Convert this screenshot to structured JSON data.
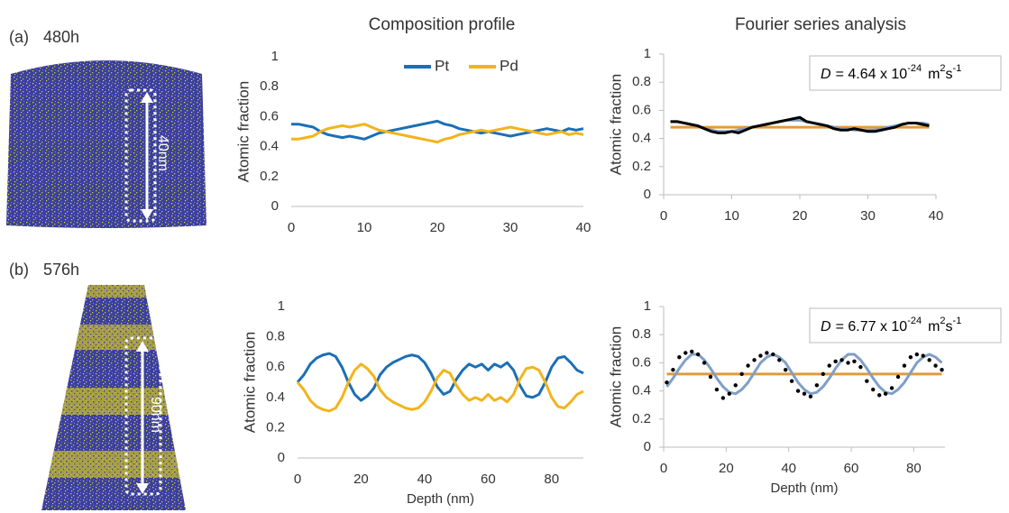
{
  "headers": {
    "composition": "Composition profile",
    "fourier": "Fourier series analysis"
  },
  "panels": [
    {
      "label": "(a)",
      "time": "480h",
      "scale": "40nm"
    },
    {
      "label": "(b)",
      "time": "576h",
      "scale": "90nm"
    }
  ],
  "chart_data": [
    {
      "type": "line",
      "ylabel": "Atomic fraction",
      "xlim": [
        0,
        40
      ],
      "ylim": [
        0,
        1
      ],
      "xticks": [
        0,
        10,
        20,
        30,
        40
      ],
      "yticks": [
        0,
        0.2,
        0.4,
        0.6,
        0.8,
        1
      ],
      "legend": "top",
      "x": [
        0,
        1,
        2,
        3,
        4,
        5,
        6,
        7,
        8,
        9,
        10,
        11,
        12,
        13,
        14,
        15,
        16,
        17,
        18,
        19,
        20,
        21,
        22,
        23,
        24,
        25,
        26,
        27,
        28,
        29,
        30,
        31,
        32,
        33,
        34,
        35,
        36,
        37,
        38,
        39,
        40
      ],
      "series": [
        {
          "name": "Pt",
          "color": "#1b6fb5",
          "values": [
            0.55,
            0.55,
            0.54,
            0.53,
            0.5,
            0.48,
            0.47,
            0.46,
            0.47,
            0.46,
            0.45,
            0.47,
            0.49,
            0.5,
            0.51,
            0.52,
            0.53,
            0.54,
            0.55,
            0.56,
            0.57,
            0.55,
            0.54,
            0.52,
            0.51,
            0.5,
            0.49,
            0.5,
            0.49,
            0.48,
            0.47,
            0.48,
            0.49,
            0.5,
            0.51,
            0.52,
            0.51,
            0.5,
            0.52,
            0.51,
            0.52
          ]
        },
        {
          "name": "Pd",
          "color": "#f2b41c",
          "values": [
            0.45,
            0.45,
            0.46,
            0.47,
            0.5,
            0.52,
            0.53,
            0.54,
            0.53,
            0.54,
            0.55,
            0.53,
            0.51,
            0.5,
            0.49,
            0.48,
            0.47,
            0.46,
            0.45,
            0.44,
            0.43,
            0.45,
            0.46,
            0.48,
            0.49,
            0.5,
            0.51,
            0.5,
            0.51,
            0.52,
            0.53,
            0.52,
            0.51,
            0.5,
            0.49,
            0.48,
            0.49,
            0.5,
            0.48,
            0.49,
            0.48
          ]
        }
      ]
    },
    {
      "type": "line",
      "ylabel": "Atomic fraction",
      "xlim": [
        0,
        40
      ],
      "ylim": [
        0,
        1
      ],
      "xticks": [
        0,
        10,
        20,
        30,
        40
      ],
      "yticks": [
        0,
        0.2,
        0.4,
        0.6,
        0.8,
        1
      ],
      "tick_marks": true,
      "y_axis_line": true,
      "annotation": {
        "symbol": "D",
        "equals": "= 4.64 x 10",
        "exponent": "-24",
        "unit": "m",
        "unit_power": "2",
        "unit2": "s",
        "unit2_power": "-1"
      },
      "x": [
        1,
        2,
        3,
        4,
        5,
        6,
        7,
        8,
        9,
        10,
        11,
        12,
        13,
        14,
        15,
        16,
        17,
        18,
        19,
        20,
        21,
        22,
        23,
        24,
        25,
        26,
        27,
        28,
        29,
        30,
        31,
        32,
        33,
        34,
        35,
        36,
        37,
        38,
        39
      ],
      "series": [
        {
          "color": "#e39a3b",
          "x": [
            1,
            39
          ],
          "values": [
            0.48,
            0.48
          ]
        },
        {
          "color": "#7f9fc8",
          "values": [
            0.52,
            0.52,
            0.51,
            0.5,
            0.49,
            0.47,
            0.46,
            0.45,
            0.45,
            0.45,
            0.46,
            0.47,
            0.48,
            0.49,
            0.5,
            0.51,
            0.52,
            0.53,
            0.53,
            0.53,
            0.52,
            0.51,
            0.5,
            0.49,
            0.48,
            0.47,
            0.47,
            0.46,
            0.46,
            0.46,
            0.46,
            0.47,
            0.48,
            0.49,
            0.5,
            0.51,
            0.51,
            0.51,
            0.5
          ]
        },
        {
          "color": "#000000",
          "width": 3,
          "values": [
            0.52,
            0.52,
            0.51,
            0.5,
            0.49,
            0.47,
            0.45,
            0.44,
            0.44,
            0.45,
            0.44,
            0.46,
            0.48,
            0.49,
            0.5,
            0.51,
            0.52,
            0.53,
            0.54,
            0.55,
            0.52,
            0.51,
            0.5,
            0.49,
            0.47,
            0.46,
            0.46,
            0.47,
            0.46,
            0.45,
            0.45,
            0.46,
            0.47,
            0.48,
            0.5,
            0.51,
            0.51,
            0.5,
            0.49
          ]
        }
      ]
    },
    {
      "type": "line",
      "ylabel": "Atomic fraction",
      "xlabel": "Depth (nm)",
      "xlim": [
        0,
        90
      ],
      "ylim": [
        0,
        1
      ],
      "xticks": [
        0,
        20,
        40,
        60,
        80
      ],
      "yticks": [
        0,
        0.2,
        0.4,
        0.6,
        0.8,
        1
      ],
      "x": [
        0,
        2,
        4,
        6,
        8,
        10,
        12,
        14,
        16,
        18,
        20,
        22,
        24,
        26,
        28,
        30,
        32,
        34,
        36,
        38,
        40,
        42,
        44,
        46,
        48,
        50,
        52,
        54,
        56,
        58,
        60,
        62,
        64,
        66,
        68,
        70,
        72,
        74,
        76,
        78,
        80,
        82,
        84,
        86,
        88,
        90
      ],
      "series": [
        {
          "color": "#1b6fb5",
          "values": [
            0.5,
            0.55,
            0.62,
            0.66,
            0.68,
            0.69,
            0.67,
            0.6,
            0.5,
            0.42,
            0.38,
            0.41,
            0.46,
            0.55,
            0.6,
            0.63,
            0.65,
            0.67,
            0.68,
            0.67,
            0.63,
            0.56,
            0.47,
            0.42,
            0.44,
            0.52,
            0.58,
            0.62,
            0.6,
            0.62,
            0.58,
            0.62,
            0.6,
            0.63,
            0.58,
            0.48,
            0.41,
            0.4,
            0.42,
            0.5,
            0.6,
            0.66,
            0.67,
            0.63,
            0.58,
            0.56
          ]
        },
        {
          "color": "#f2b41c",
          "values": [
            0.5,
            0.45,
            0.38,
            0.34,
            0.32,
            0.31,
            0.33,
            0.4,
            0.5,
            0.58,
            0.62,
            0.59,
            0.54,
            0.45,
            0.4,
            0.37,
            0.35,
            0.33,
            0.32,
            0.33,
            0.37,
            0.44,
            0.53,
            0.58,
            0.56,
            0.48,
            0.42,
            0.38,
            0.4,
            0.38,
            0.42,
            0.38,
            0.4,
            0.37,
            0.42,
            0.52,
            0.59,
            0.6,
            0.58,
            0.5,
            0.4,
            0.34,
            0.33,
            0.37,
            0.42,
            0.44
          ]
        }
      ]
    },
    {
      "type": "line",
      "ylabel": "Atomic fraction",
      "xlabel": "Depth (nm)",
      "xlim": [
        0,
        90
      ],
      "ylim": [
        0,
        1
      ],
      "xticks": [
        0,
        20,
        40,
        60,
        80
      ],
      "yticks": [
        0,
        0.2,
        0.4,
        0.6,
        0.8,
        1
      ],
      "tick_marks": true,
      "y_axis_line": true,
      "annotation": {
        "symbol": "D",
        "equals": "= 6.77 x 10",
        "exponent": "-24",
        "unit": "m",
        "unit_power": "2",
        "unit2": "s",
        "unit2_power": "-1"
      },
      "x": [
        1,
        3,
        5,
        7,
        9,
        11,
        13,
        15,
        17,
        19,
        21,
        23,
        25,
        27,
        29,
        31,
        33,
        35,
        37,
        39,
        41,
        43,
        45,
        47,
        49,
        51,
        53,
        55,
        57,
        59,
        61,
        63,
        65,
        67,
        69,
        71,
        73,
        75,
        77,
        79,
        81,
        83,
        85,
        87,
        89
      ],
      "series": [
        {
          "color": "#e39a3b",
          "x": [
            1,
            89
          ],
          "values": [
            0.52,
            0.52
          ]
        },
        {
          "color": "#7f9fc8",
          "values": [
            0.43,
            0.49,
            0.56,
            0.62,
            0.66,
            0.66,
            0.62,
            0.56,
            0.49,
            0.43,
            0.39,
            0.38,
            0.41,
            0.46,
            0.53,
            0.6,
            0.64,
            0.66,
            0.64,
            0.6,
            0.53,
            0.46,
            0.41,
            0.38,
            0.39,
            0.43,
            0.49,
            0.56,
            0.62,
            0.66,
            0.66,
            0.62,
            0.56,
            0.49,
            0.43,
            0.39,
            0.38,
            0.41,
            0.46,
            0.53,
            0.6,
            0.64,
            0.66,
            0.64,
            0.6
          ]
        },
        {
          "color": "#000000",
          "style": "dots",
          "values": [
            0.46,
            0.55,
            0.64,
            0.67,
            0.68,
            0.66,
            0.6,
            0.5,
            0.41,
            0.35,
            0.38,
            0.44,
            0.52,
            0.58,
            0.62,
            0.65,
            0.67,
            0.66,
            0.62,
            0.55,
            0.47,
            0.4,
            0.38,
            0.36,
            0.44,
            0.52,
            0.58,
            0.61,
            0.62,
            0.6,
            0.61,
            0.57,
            0.47,
            0.41,
            0.37,
            0.38,
            0.42,
            0.5,
            0.58,
            0.64,
            0.66,
            0.65,
            0.62,
            0.58,
            0.55
          ]
        }
      ]
    }
  ]
}
